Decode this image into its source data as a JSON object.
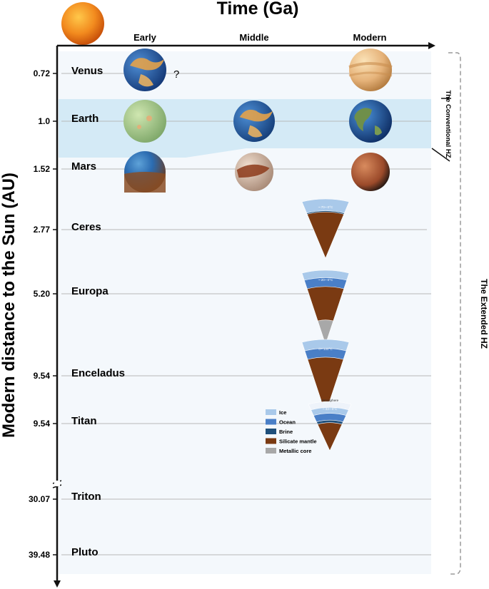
{
  "title": "Time (Ga)",
  "y_axis_label": "Modern distance to the Sun (AU)",
  "columns": [
    "Early",
    "Middle",
    "Modern"
  ],
  "bodies": [
    {
      "name": "Venus",
      "distance": "0.72",
      "early": "venus-early",
      "middle": "",
      "modern": "venus-modern",
      "note": "?"
    },
    {
      "name": "Earth",
      "distance": "1.0",
      "early": "earth-early",
      "middle": "earth-middle",
      "modern": "earth-modern"
    },
    {
      "name": "Mars",
      "distance": "1.52",
      "early": "mars-early",
      "middle": "mars-middle",
      "modern": "mars-modern"
    },
    {
      "name": "Ceres",
      "distance": "2.77",
      "modern": "ceres-modern",
      "interior": {
        "temp_label": "~-70~-0°C"
      }
    },
    {
      "name": "Europa",
      "distance": "5.20",
      "modern": "europa-modern",
      "interior": {
        "temp_label": "~-20~-0°C"
      }
    },
    {
      "name": "Enceladus",
      "distance": "9.54",
      "modern": "enceladus-modern",
      "interior": {
        "temp_label": "0~-100°C"
      }
    },
    {
      "name": "Titan",
      "distance": "9.54",
      "modern": "titan-modern",
      "interior": {
        "temp_label": "~-33~-0°C",
        "top_label": "Atmosphere"
      }
    },
    {
      "name": "Triton",
      "distance": "30.07",
      "modern": "triton-modern"
    },
    {
      "name": "Pluto",
      "distance": "39.48",
      "modern": "pluto-modern"
    }
  ],
  "interior_legend": [
    {
      "label": "Ice",
      "color": "#a9c9ea"
    },
    {
      "label": "Ocean",
      "color": "#4a7fc7"
    },
    {
      "label": "Brine",
      "color": "#1f4f7a"
    },
    {
      "label": "Silicate mantle",
      "color": "#7a3a12"
    },
    {
      "label": "Metallic core",
      "color": "#a8a8a8"
    }
  ],
  "zones": {
    "conventional": "The Conventional HZ",
    "extended": "The Extended HZ"
  },
  "colors": {
    "conventional_band": "#d4eaf6",
    "panel_bg": "#f4f8fc",
    "grid": "#b9b9b9"
  }
}
